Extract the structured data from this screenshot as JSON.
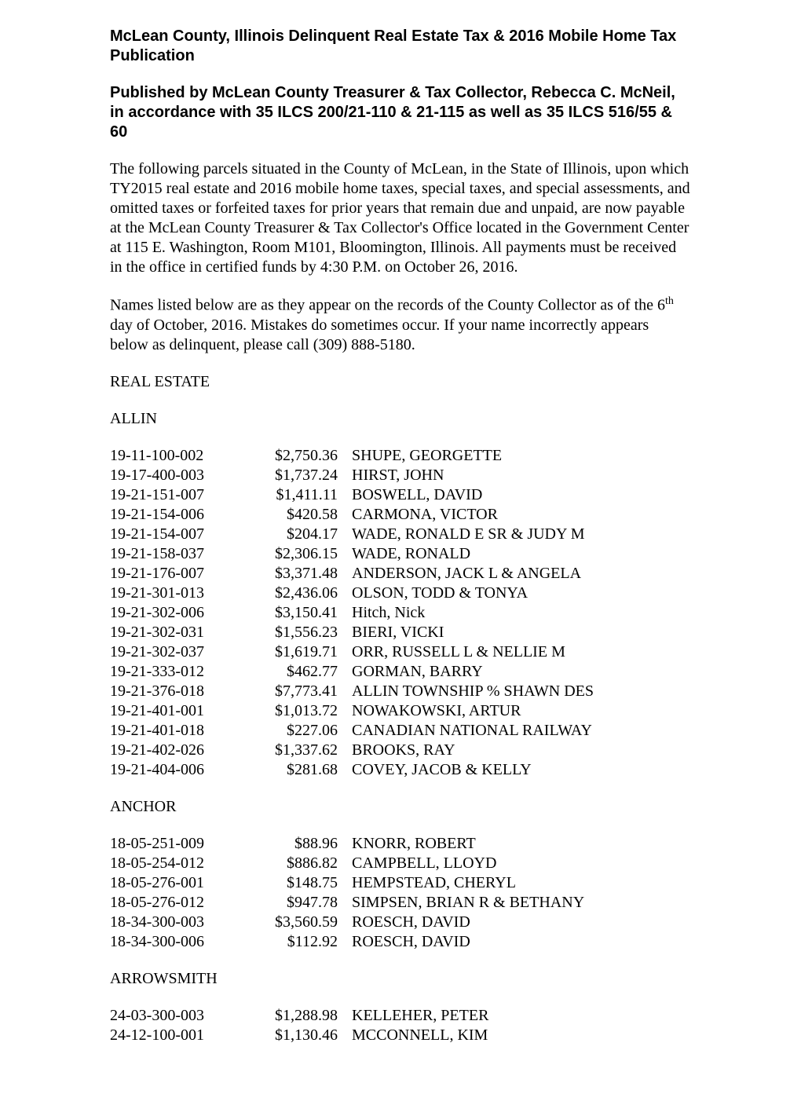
{
  "heading1": "McLean County, Illinois Delinquent Real Estate Tax & 2016 Mobile Home Tax Publication",
  "heading2": "Published by McLean County Treasurer & Tax Collector, Rebecca C. McNeil, in accordance with 35 ILCS 200/21-110 & 21-115 as well as 35 ILCS 516/55 & 60",
  "para1": "The following parcels situated in the County of McLean, in the State of Illinois, upon which TY2015 real estate and 2016 mobile home taxes, special taxes, and special assessments, and omitted taxes or forfeited taxes for prior years that remain due and unpaid, are now payable at the McLean County Treasurer & Tax Collector's Office located in the Government Center at 115 E. Washington, Room M101, Bloomington, Illinois.  All payments must be received in the office in certified funds by 4:30 P.M. on October 26, 2016.",
  "para2_a": "Names listed below are as they appear on the records of the County Collector as of the 6",
  "para2_sup": "th",
  "para2_b": " day of October, 2016.  Mistakes do sometimes occur.  If your name incorrectly appears below as delinquent, please call (309) 888-5180.",
  "section_label": "REAL ESTATE",
  "townships": [
    {
      "name": "ALLIN",
      "rows": [
        {
          "parcel": "19-11-100-002",
          "amount": "$2,750.36",
          "name": "SHUPE, GEORGETTE"
        },
        {
          "parcel": "19-17-400-003",
          "amount": "$1,737.24",
          "name": "HIRST, JOHN"
        },
        {
          "parcel": "19-21-151-007",
          "amount": "$1,411.11",
          "name": "BOSWELL, DAVID"
        },
        {
          "parcel": "19-21-154-006",
          "amount": "$420.58",
          "name": "CARMONA, VICTOR"
        },
        {
          "parcel": "19-21-154-007",
          "amount": "$204.17",
          "name": "WADE, RONALD E SR & JUDY M"
        },
        {
          "parcel": "19-21-158-037",
          "amount": "$2,306.15",
          "name": "WADE, RONALD"
        },
        {
          "parcel": "19-21-176-007",
          "amount": "$3,371.48",
          "name": "ANDERSON, JACK L & ANGELA"
        },
        {
          "parcel": "19-21-301-013",
          "amount": "$2,436.06",
          "name": "OLSON, TODD & TONYA"
        },
        {
          "parcel": "19-21-302-006",
          "amount": "$3,150.41",
          "name": "Hitch, Nick"
        },
        {
          "parcel": "19-21-302-031",
          "amount": "$1,556.23",
          "name": "BIERI, VICKI"
        },
        {
          "parcel": "19-21-302-037",
          "amount": "$1,619.71",
          "name": "ORR, RUSSELL L & NELLIE M"
        },
        {
          "parcel": "19-21-333-012",
          "amount": "$462.77",
          "name": "GORMAN, BARRY"
        },
        {
          "parcel": "19-21-376-018",
          "amount": "$7,773.41",
          "name": "ALLIN TOWNSHIP % SHAWN DES"
        },
        {
          "parcel": "19-21-401-001",
          "amount": "$1,013.72",
          "name": "NOWAKOWSKI, ARTUR"
        },
        {
          "parcel": "19-21-401-018",
          "amount": "$227.06",
          "name": "CANADIAN NATIONAL RAILWAY"
        },
        {
          "parcel": "19-21-402-026",
          "amount": "$1,337.62",
          "name": "BROOKS, RAY"
        },
        {
          "parcel": "19-21-404-006",
          "amount": "$281.68",
          "name": "COVEY, JACOB & KELLY"
        }
      ]
    },
    {
      "name": "ANCHOR",
      "rows": [
        {
          "parcel": "18-05-251-009",
          "amount": "$88.96",
          "name": "KNORR, ROBERT"
        },
        {
          "parcel": "18-05-254-012",
          "amount": "$886.82",
          "name": "CAMPBELL, LLOYD"
        },
        {
          "parcel": "18-05-276-001",
          "amount": "$148.75",
          "name": "HEMPSTEAD, CHERYL"
        },
        {
          "parcel": "18-05-276-012",
          "amount": "$947.78",
          "name": "SIMPSEN, BRIAN R & BETHANY"
        },
        {
          "parcel": "18-34-300-003",
          "amount": "$3,560.59",
          "name": "ROESCH, DAVID"
        },
        {
          "parcel": "18-34-300-006",
          "amount": "$112.92",
          "name": "ROESCH, DAVID"
        }
      ]
    },
    {
      "name": "ARROWSMITH",
      "rows": [
        {
          "parcel": "24-03-300-003",
          "amount": "$1,288.98",
          "name": "KELLEHER, PETER"
        },
        {
          "parcel": "24-12-100-001",
          "amount": "$1,130.46",
          "name": "MCCONNELL, KIM"
        }
      ]
    }
  ]
}
